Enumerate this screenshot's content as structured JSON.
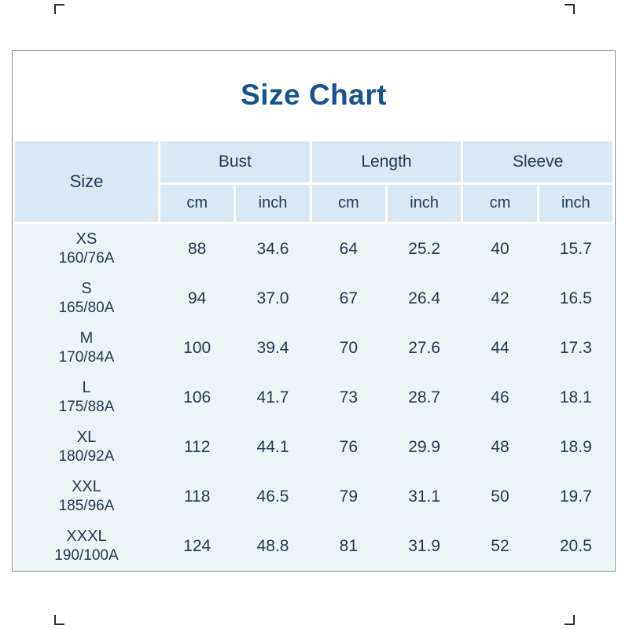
{
  "title": "Size Chart",
  "table": {
    "corner_label": "Size",
    "groups": [
      "Bust",
      "Length",
      "Sleeve"
    ],
    "unit_row": [
      "cm",
      "inch",
      "cm",
      "inch",
      "cm",
      "inch"
    ],
    "rows": [
      {
        "size": "XS",
        "spec": "160/76A",
        "values": [
          "88",
          "34.6",
          "64",
          "25.2",
          "40",
          "15.7"
        ]
      },
      {
        "size": "S",
        "spec": "165/80A",
        "values": [
          "94",
          "37.0",
          "67",
          "26.4",
          "42",
          "16.5"
        ]
      },
      {
        "size": "M",
        "spec": "170/84A",
        "values": [
          "100",
          "39.4",
          "70",
          "27.6",
          "44",
          "17.3"
        ]
      },
      {
        "size": "L",
        "spec": "175/88A",
        "values": [
          "106",
          "41.7",
          "73",
          "28.7",
          "46",
          "18.1"
        ]
      },
      {
        "size": "XL",
        "spec": "180/92A",
        "values": [
          "112",
          "44.1",
          "76",
          "29.9",
          "48",
          "18.9"
        ]
      },
      {
        "size": "XXL",
        "spec": "185/96A",
        "values": [
          "118",
          "46.5",
          "79",
          "31.1",
          "50",
          "19.7"
        ]
      },
      {
        "size": "XXXL",
        "spec": "190/100A",
        "values": [
          "124",
          "48.8",
          "81",
          "31.9",
          "52",
          "20.5"
        ]
      }
    ]
  },
  "colors": {
    "title_text": "#17538f",
    "header_bg": "#d9e8f2",
    "body_bg": "#edf4f8",
    "body_text": "#22384f",
    "border": "#8e8e8e"
  },
  "chart_data": {
    "type": "table",
    "title": "Size Chart",
    "columns": [
      "Size",
      "Bust (cm)",
      "Bust (inch)",
      "Length (cm)",
      "Length (inch)",
      "Sleeve (cm)",
      "Sleeve (inch)"
    ],
    "rows": [
      [
        "XS 160/76A",
        88,
        34.6,
        64,
        25.2,
        40,
        15.7
      ],
      [
        "S 165/80A",
        94,
        37.0,
        67,
        26.4,
        42,
        16.5
      ],
      [
        "M 170/84A",
        100,
        39.4,
        70,
        27.6,
        44,
        17.3
      ],
      [
        "L 175/88A",
        106,
        41.7,
        73,
        28.7,
        46,
        18.1
      ],
      [
        "XL 180/92A",
        112,
        44.1,
        76,
        29.9,
        48,
        18.9
      ],
      [
        "XXL 185/96A",
        118,
        46.5,
        79,
        31.1,
        50,
        19.7
      ],
      [
        "XXXL 190/100A",
        124,
        48.8,
        81,
        31.9,
        52,
        20.5
      ]
    ]
  }
}
